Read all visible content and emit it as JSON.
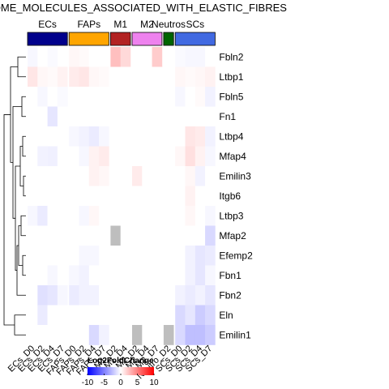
{
  "chart_data": {
    "type": "heatmap",
    "title": "REACTOME_MOLECULES_ASSOCIATED_WITH_ELASTIC_FIBRES",
    "columns": [
      "ECs_D0",
      "ECs_D2",
      "ECs_D4",
      "ECs_D7",
      "FAPs_D0",
      "FAPs_D2",
      "FAPs_D4",
      "FAPs_D7",
      "M1_D2",
      "M1_D4",
      "M2_D2",
      "M2_D4",
      "M2_D7",
      "Neutro_D2",
      "SCs_D0",
      "SCs_D2",
      "SCs_D4",
      "SCs_D7"
    ],
    "rows": [
      "Fbln2",
      "Ltbp1",
      "Fbln5",
      "Fn1",
      "Ltbp4",
      "Mfap4",
      "Emilin3",
      "Itgb6",
      "Ltbp3",
      "Mfap2",
      "Efemp2",
      "Fbn1",
      "Fbn2",
      "Eln",
      "Emilin1"
    ],
    "values": [
      [
        -0.3,
        0,
        -0.2,
        0,
        0.3,
        0.2,
        0,
        0,
        2.5,
        1.5,
        0,
        0,
        2.0,
        0,
        -0.2,
        -0.3,
        -0.3,
        0
      ],
      [
        1.0,
        0.3,
        0.2,
        0.5,
        0.8,
        1.0,
        0.3,
        0.2,
        0,
        0,
        0,
        0,
        0,
        0,
        0.3,
        0.2,
        0.3,
        0.5
      ],
      [
        0,
        -0.3,
        0,
        -0.2,
        0,
        0,
        0,
        0,
        0,
        0,
        0,
        0,
        0,
        0,
        -0.3,
        0,
        0.2,
        -0.5
      ],
      [
        0,
        0,
        -1.0,
        0,
        0,
        0,
        0,
        0,
        0,
        0,
        0,
        0,
        0,
        0,
        0,
        0,
        0,
        0
      ],
      [
        0,
        0,
        0,
        0,
        -0.3,
        -0.5,
        -0.8,
        -0.3,
        0,
        0,
        0,
        0,
        0,
        0,
        0,
        1.0,
        0.8,
        -0.5
      ],
      [
        0,
        -0.5,
        -0.6,
        0,
        0,
        -0.3,
        0.5,
        0.8,
        0,
        0,
        0,
        0,
        0,
        0,
        0.3,
        1.2,
        0.5,
        -0.3
      ],
      [
        0,
        0,
        0,
        0,
        0,
        0,
        0.5,
        0.3,
        0,
        0,
        0.8,
        0,
        0,
        0,
        0,
        0.3,
        -0.5,
        0
      ],
      [
        0,
        0,
        0,
        0,
        0,
        0,
        0,
        0,
        0,
        0,
        0,
        0,
        0,
        0,
        0,
        0.5,
        0,
        0
      ],
      [
        -0.3,
        -0.8,
        0,
        0,
        0,
        -0.3,
        0.3,
        0,
        0,
        0,
        0,
        0,
        0,
        0,
        0,
        0.3,
        0,
        -0.3
      ],
      [
        0,
        0,
        0,
        0,
        0,
        0,
        0,
        0,
        null,
        0,
        0,
        0,
        0,
        0,
        0,
        0,
        0,
        -1.5
      ],
      [
        0,
        0,
        0,
        0,
        0,
        -0.3,
        -0.3,
        0,
        0,
        0,
        0,
        0,
        0,
        0,
        0,
        -0.5,
        -1.0,
        -0.8
      ],
      [
        0,
        0,
        -0.3,
        0,
        -0.3,
        -0.5,
        0,
        0,
        0,
        0,
        0,
        0,
        0,
        0,
        0,
        -0.5,
        -1.0,
        -0.3
      ],
      [
        0,
        -1.2,
        -1.0,
        -0.3,
        -0.8,
        -0.5,
        -0.5,
        0,
        0,
        0,
        0,
        0,
        0,
        0,
        -0.5,
        -0.8,
        -0.5,
        -1.0
      ],
      [
        0,
        -0.8,
        0,
        0,
        0,
        0,
        0,
        0,
        0,
        0,
        0,
        0,
        0,
        0,
        -1.5,
        -1.0,
        -2.0,
        -1.5
      ],
      [
        0,
        0,
        0,
        0,
        0,
        0,
        -1.5,
        -0.5,
        0,
        0,
        null,
        0,
        0,
        null,
        -1.5,
        -2.5,
        -2.5,
        -2.0
      ]
    ],
    "groups": [
      {
        "name": "ECs",
        "color": "#00008B",
        "span": 4
      },
      {
        "name": "FAPs",
        "color": "#FFA500",
        "span": 4
      },
      {
        "name": "M1",
        "color": "#B22222",
        "span": 2
      },
      {
        "name": "M2",
        "color": "#EE82EE",
        "span": 3
      },
      {
        "name": "Neutros",
        "color": "#006400",
        "span": 1
      },
      {
        "name": "SCs",
        "color": "#4169E1",
        "span": 4
      }
    ],
    "legend": {
      "title": "Log2FoldChange",
      "ticks": [
        -10,
        -5,
        0,
        5,
        10
      ],
      "range": [
        -10,
        10
      ],
      "colors": {
        "low": "#0000FF",
        "mid": "#FFFFFF",
        "high": "#FF0000"
      }
    },
    "na_color": "#BEBEBE"
  }
}
